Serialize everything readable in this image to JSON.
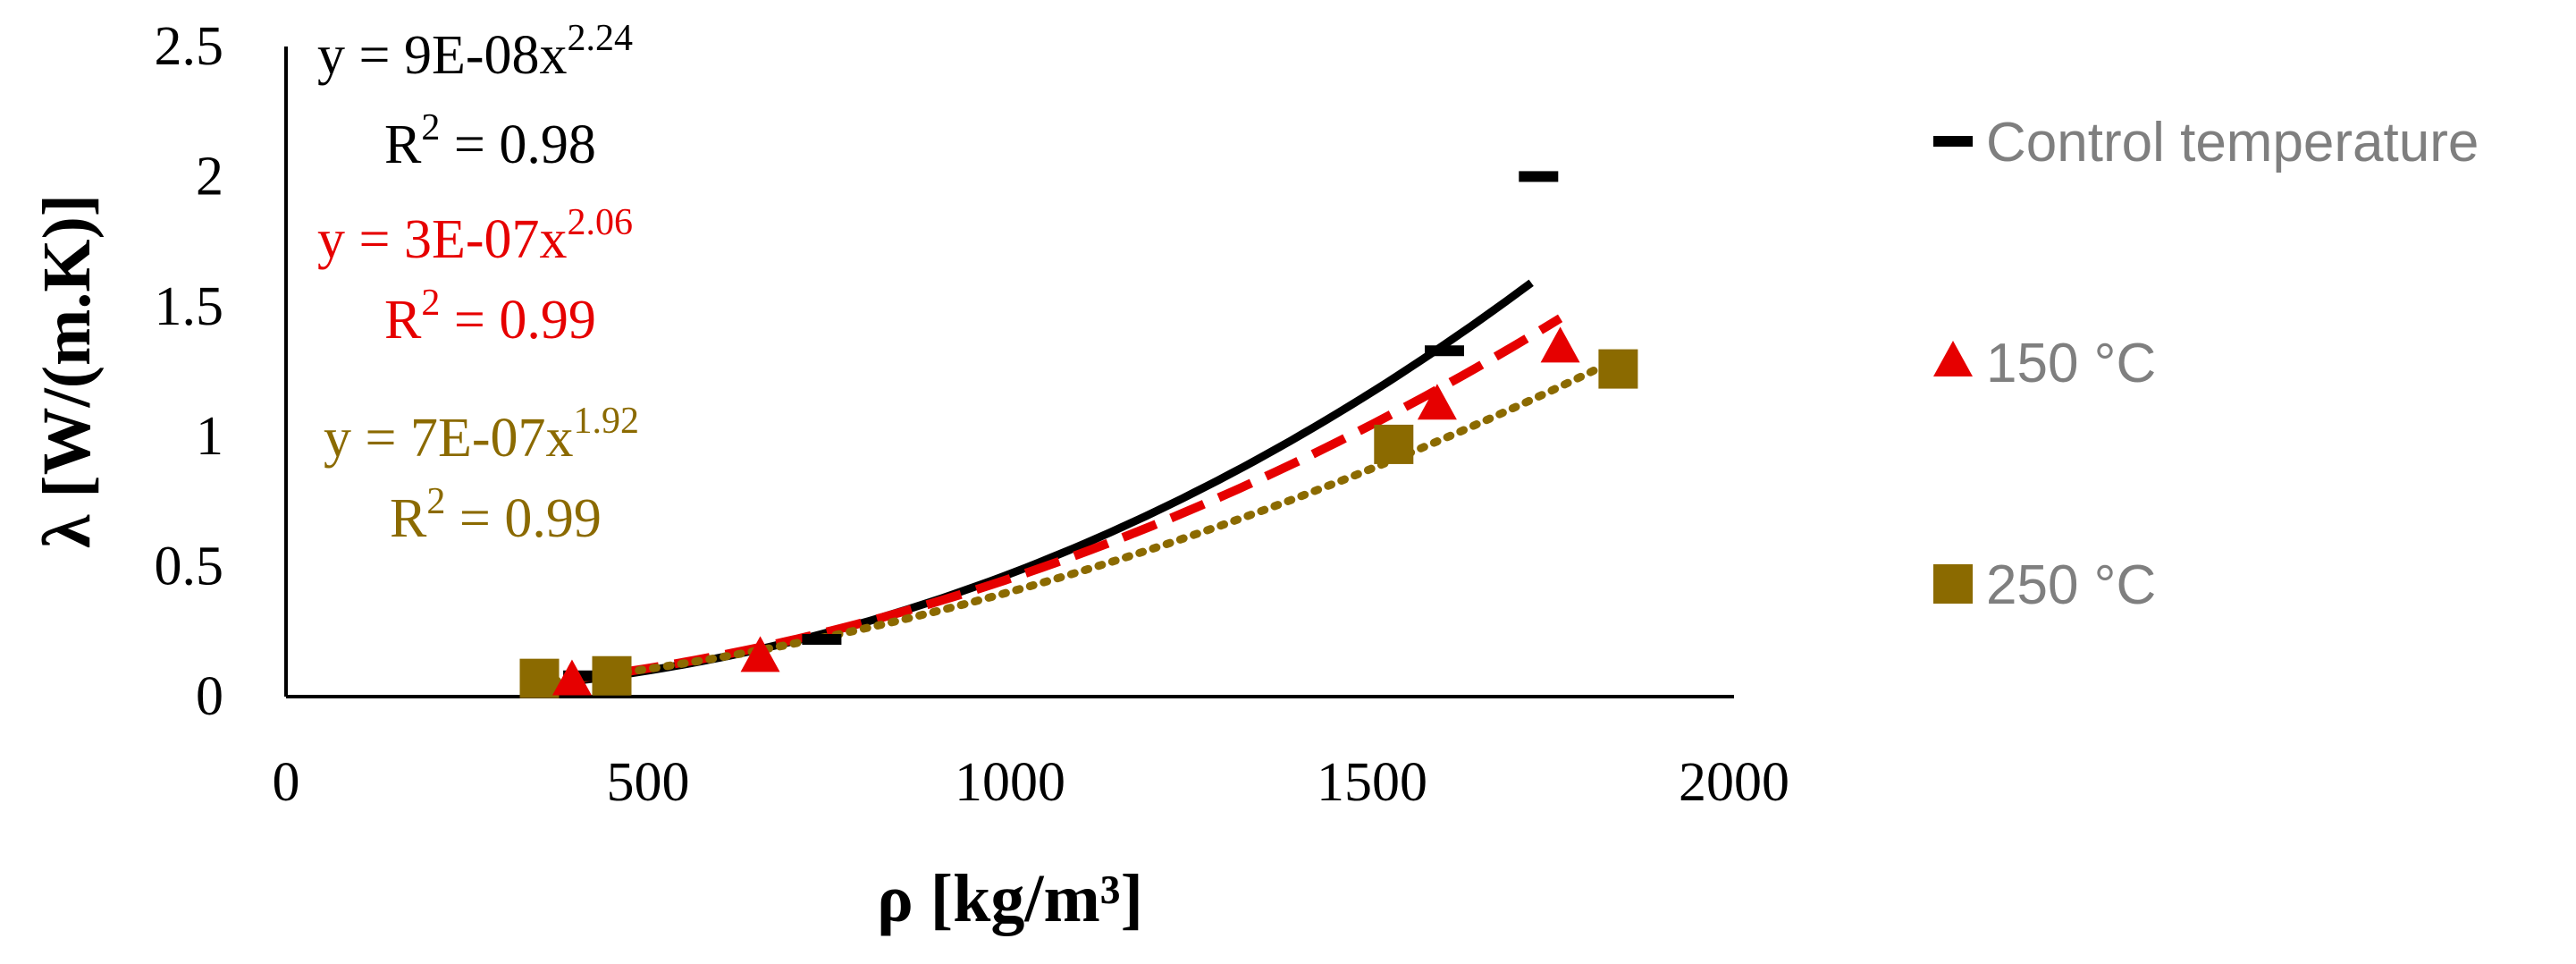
{
  "chart_data": {
    "type": "scatter",
    "title": "",
    "xlabel": "ρ [kg/m³]",
    "ylabel": "λ [W/(m.K)]",
    "xlim": [
      0,
      2000
    ],
    "ylim": [
      0,
      2.5
    ],
    "xticks": [
      0,
      500,
      1000,
      1500,
      2000
    ],
    "xtick_labels": [
      "0",
      "500",
      "1000",
      "1500",
      "2000"
    ],
    "yticks": [
      0,
      0.5,
      1,
      1.5,
      2,
      2.5
    ],
    "ytick_labels": [
      "0",
      "0.5",
      "1",
      "1.5",
      "2",
      "2.5"
    ],
    "gridlines": false,
    "legend_position": "right",
    "series": [
      {
        "name": "Control temperature",
        "color": "#000000",
        "marker": "dash",
        "x": [
          410,
          740,
          1600,
          1730
        ],
        "y": [
          0.08,
          0.22,
          1.33,
          2.0
        ],
        "trendline": {
          "type": "power",
          "a": 9e-08,
          "b": 2.24,
          "x_range": [
            390,
            1720
          ],
          "style": "solid",
          "equation_base": "y = 9E-08x",
          "equation_exponent": "2.24",
          "r2_label": "R",
          "r2_sup": "2",
          "r2_value": " = 0.98"
        }
      },
      {
        "name": "150 °C",
        "color": "#e60000",
        "marker": "triangle",
        "x": [
          395,
          655,
          1590,
          1760
        ],
        "y": [
          0.06,
          0.15,
          1.12,
          1.34
        ],
        "trendline": {
          "type": "power",
          "a": 3e-07,
          "b": 2.06,
          "x_range": [
            395,
            1760
          ],
          "style": "dashed",
          "equation_base": "y = 3E-07x",
          "equation_exponent": "2.06",
          "r2_label": "R",
          "r2_sup": "2",
          "r2_value": " = 0.99"
        }
      },
      {
        "name": "250 °C",
        "color": "#8b6a00",
        "marker": "square",
        "x": [
          350,
          450,
          1530,
          1840
        ],
        "y": [
          0.07,
          0.08,
          0.97,
          1.26
        ],
        "trendline": {
          "type": "power",
          "a": 7e-07,
          "b": 1.92,
          "x_range": [
            350,
            1840
          ],
          "style": "dotted",
          "equation_base": "y = 7E-07x",
          "equation_exponent": "1.92",
          "r2_label": "R",
          "r2_sup": "2",
          "r2_value": " = 0.99"
        }
      }
    ]
  }
}
